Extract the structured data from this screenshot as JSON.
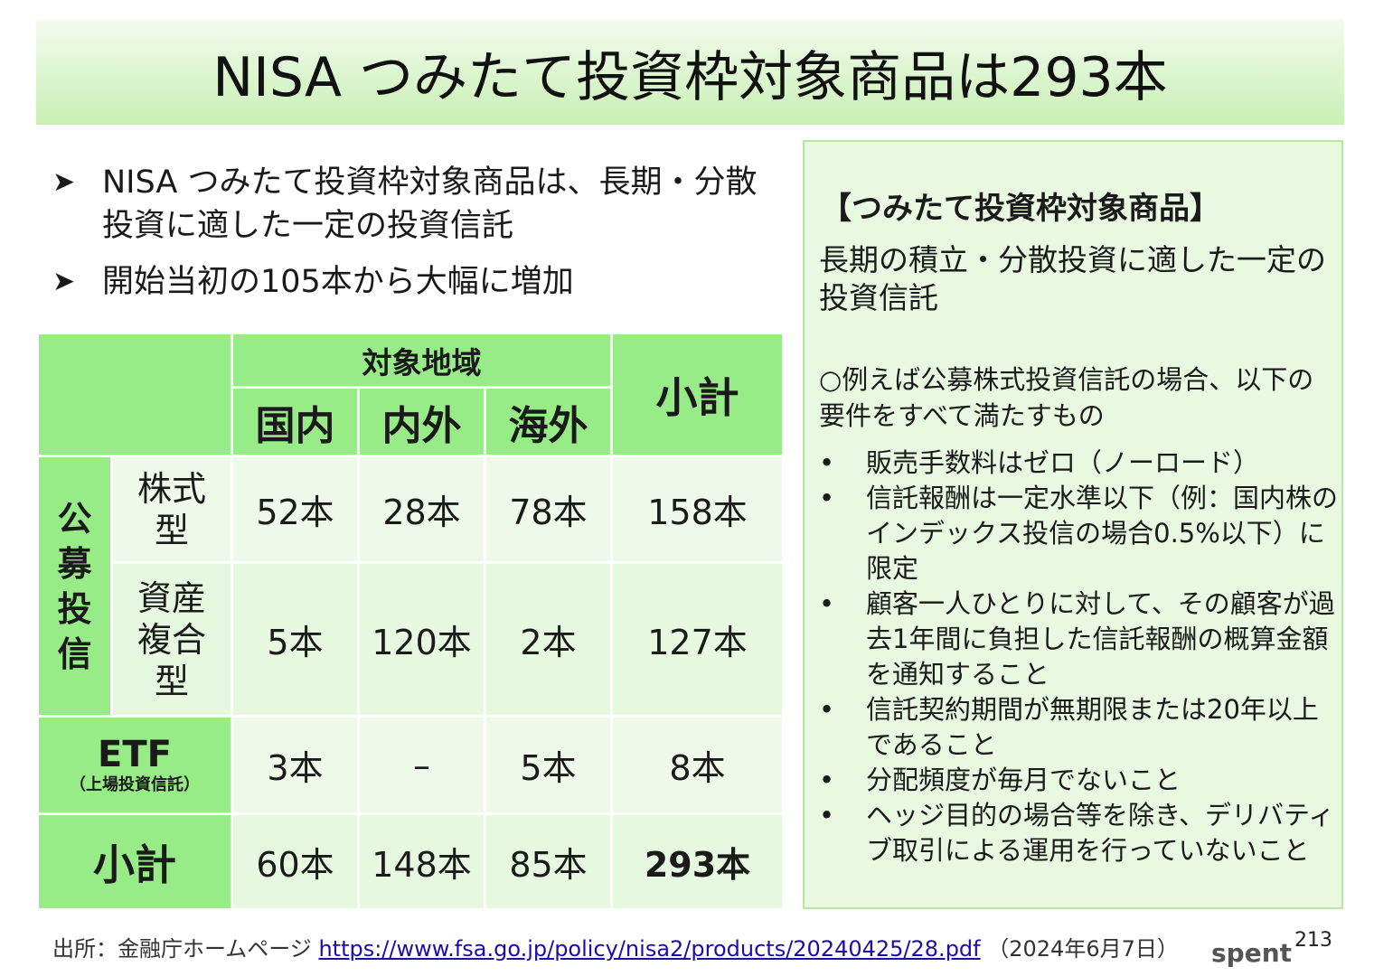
{
  "title": "NISA つみたて投資枠対象商品は293本",
  "bullets": [
    "NISA つみたて投資枠対象商品は、長期・分散投資に適した一定の投資信託",
    "開始当初の105本から大幅に増加"
  ],
  "bullet_icon": "arrowhead-bullet-icon",
  "table": {
    "region_header": "対象地域",
    "regions": [
      "国内",
      "内外",
      "海外"
    ],
    "subtotal_header": "小計",
    "public_group": "公募投信",
    "rows": [
      {
        "label": "株式型",
        "label_lines": [
          "株式",
          "型"
        ],
        "values": [
          "52本",
          "28本",
          "78本"
        ],
        "subtotal": "158本"
      },
      {
        "label": "資産複合型",
        "label_lines": [
          "資産",
          "複合",
          "型"
        ],
        "values": [
          "5本",
          "120本",
          "2本"
        ],
        "subtotal": "127本"
      }
    ],
    "etf": {
      "label": "ETF",
      "sublabel": "（上場投資信託）",
      "values": [
        "3本",
        "–",
        "5本"
      ],
      "subtotal": "8本"
    },
    "total": {
      "label": "小計",
      "values": [
        "60本",
        "148本",
        "85本"
      ],
      "grand_total": "293本"
    }
  },
  "panel": {
    "heading": "【つみたて投資枠対象商品】",
    "description": "長期の積立・分散投資に適した一定の投資信託",
    "intro": "○例えば公募株式投資信託の場合、以下の要件をすべて満たすもの",
    "requirements": [
      "販売手数料はゼロ（ノーロード）",
      "信託報酬は一定水準以下（例：国内株のインデックス投信の場合0.5%以下）に限定",
      "顧客一人ひとりに対して、その顧客が過去1年間に負担した信託報酬の概算金額を通知すること",
      "信託契約期間が無期限または20年以上であること",
      "分配頻度が毎月でないこと",
      "ヘッジ目的の場合等を除き、デリバティブ取引による運用を行っていないこと"
    ]
  },
  "footer": {
    "source_prefix": "出所：金融庁ホームページ",
    "url": "https://www.fsa.go.jp/policy/nisa2/products/20240425/28.pdf",
    "date": "（2024年6月7日）"
  },
  "logo_text": "spent",
  "page_number": "213",
  "colors": {
    "header_green": "#98ec88",
    "cell_light": "#e6f8df",
    "cell_lighter": "#eff9ea",
    "panel_bg": "#e9f8e1",
    "title_gradient": "#c8f0b4"
  }
}
